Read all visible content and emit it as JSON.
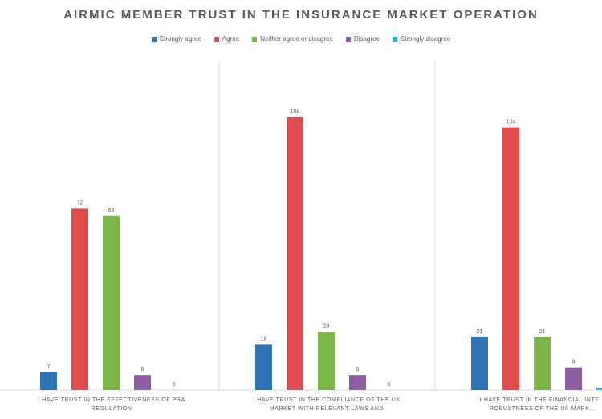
{
  "chart_data": {
    "type": "bar",
    "title": "AIRMIC MEMBER TRUST IN THE INSURANCE MARKET OPERATION",
    "categories": [
      "I HAVE TRUST IN THE EFFECTIVENESS OF PRA REGULATION",
      "I HAVE TRUST IN THE COMPLIANCE OF THE UK MARKET WITH RELEVANT LAWS AND",
      "I HAVE TRUST IN THE FINANCIAL INTE... ROBUSTNESS OF THE UK MARK..."
    ],
    "series": [
      {
        "name": "Strongly agree",
        "color": "#2e75b6",
        "values": [
          7,
          18,
          21
        ]
      },
      {
        "name": "Agree",
        "color": "#e04b4b",
        "values": [
          72,
          108,
          104
        ]
      },
      {
        "name": "Neither agree or disagree",
        "color": "#7ab648",
        "values": [
          69,
          23,
          21
        ]
      },
      {
        "name": "Disagree",
        "color": "#8e5ea2",
        "values": [
          6,
          6,
          9
        ]
      },
      {
        "name": "Strongly disagree",
        "color": "#17bcd6",
        "values": [
          0,
          0,
          1
        ]
      }
    ],
    "ylim": [
      0,
      115
    ],
    "grid": false,
    "legend_position": "top"
  }
}
